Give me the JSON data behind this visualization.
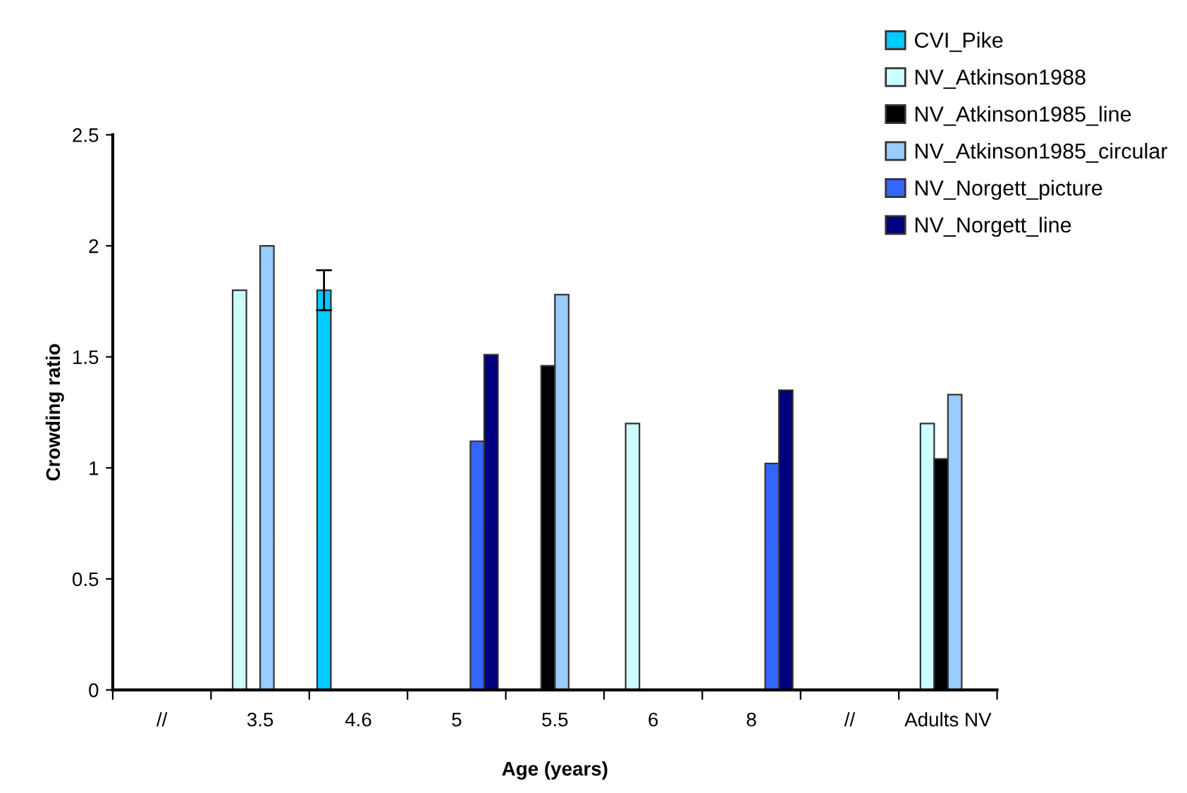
{
  "chart_data": {
    "type": "bar",
    "xlabel": "Age (years)",
    "ylabel": "Crowding ratio",
    "categories": [
      "//",
      "3.5",
      "4.6",
      "5",
      "5.5",
      "6",
      "8",
      "//",
      "Adults NV"
    ],
    "series": [
      {
        "name": "CVI_Pike",
        "color": "#00ccff",
        "values": [
          null,
          null,
          1.8,
          null,
          null,
          null,
          null,
          null,
          null
        ],
        "errors": [
          null,
          null,
          0.09,
          null,
          null,
          null,
          null,
          null,
          null
        ]
      },
      {
        "name": "NV_Atkinson1988",
        "color": "#ccffff",
        "values": [
          null,
          1.8,
          null,
          null,
          null,
          1.2,
          null,
          null,
          1.2
        ]
      },
      {
        "name": "NV_Atkinson1985_line",
        "color": "#000000",
        "values": [
          null,
          null,
          null,
          null,
          1.46,
          null,
          null,
          null,
          1.04
        ]
      },
      {
        "name": "NV_Atkinson1985_circular",
        "color": "#99ccff",
        "values": [
          null,
          2.0,
          null,
          null,
          1.78,
          null,
          null,
          null,
          1.33
        ]
      },
      {
        "name": "NV_Norgett_picture",
        "color": "#3366ff",
        "values": [
          null,
          null,
          null,
          1.12,
          null,
          null,
          1.02,
          null,
          null
        ]
      },
      {
        "name": "NV_Norgett_line",
        "color": "#000080",
        "values": [
          null,
          null,
          null,
          1.51,
          null,
          null,
          1.35,
          null,
          null
        ]
      }
    ],
    "ylim": [
      0,
      2.5
    ],
    "yticks": [
      0,
      0.5,
      1,
      1.5,
      2,
      2.5
    ],
    "grid": false,
    "legend": "top right"
  }
}
